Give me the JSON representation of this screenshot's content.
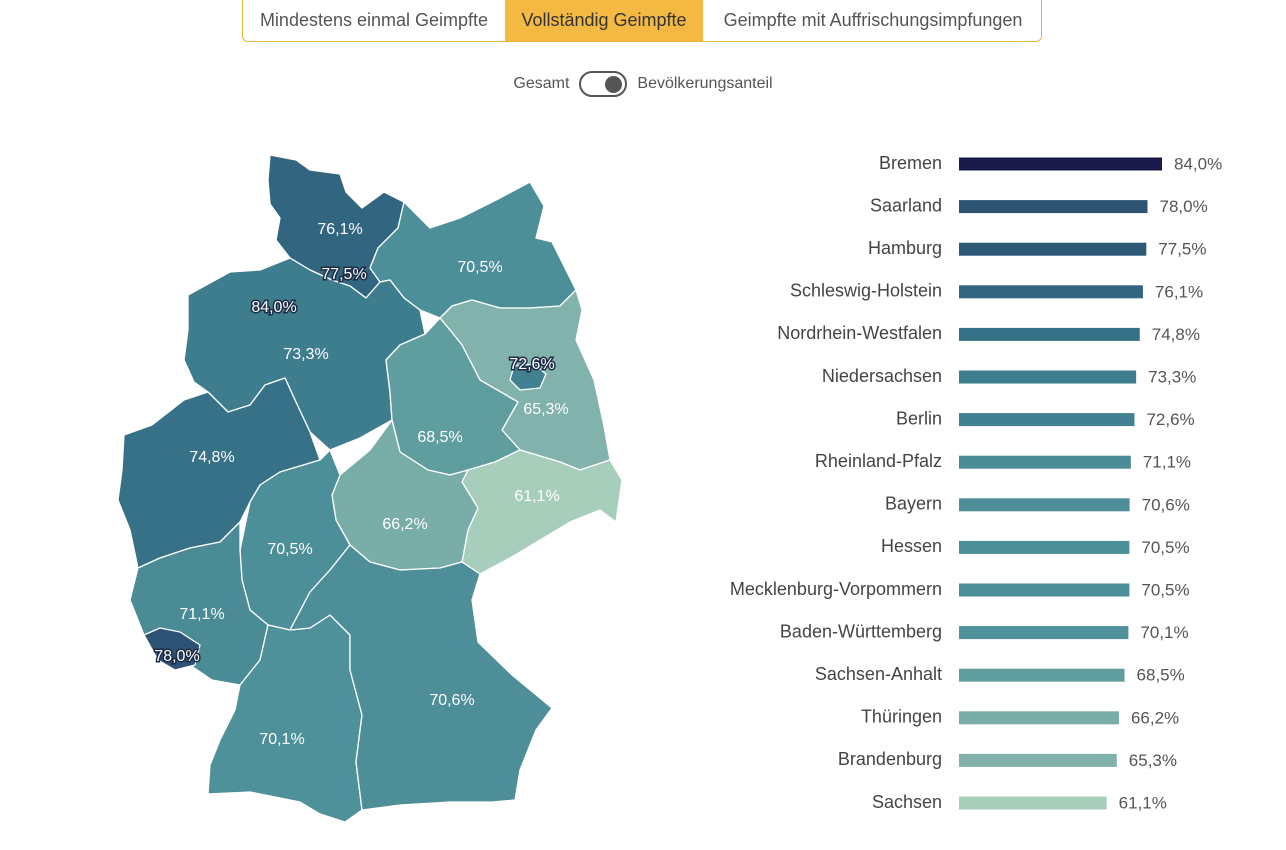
{
  "tabs": [
    {
      "label": "Mindestens einmal Geimpfte",
      "active": false
    },
    {
      "label": "Vollständig Geimpfte",
      "active": true
    },
    {
      "label": "Geimpfte mit Auffrischungsimpfungen",
      "active": false
    }
  ],
  "toggle": {
    "left_label": "Gesamt",
    "right_label": "Bevölkerungsanteil",
    "state": "Bevölkerungsanteil"
  },
  "colors": {
    "accent": "#f4b942",
    "tab_border": "#e8b53a",
    "scale_dark": "#1a1a4a",
    "scale_light": "#a8cebb"
  },
  "chart_data": [
    {
      "type": "map",
      "regions": [
        {
          "name": "Schleswig-Holstein",
          "label": "76,1%",
          "value": 76.1
        },
        {
          "name": "Hamburg",
          "label": "77,5%",
          "value": 77.5
        },
        {
          "name": "Bremen",
          "label": "84,0%",
          "value": 84.0
        },
        {
          "name": "Niedersachsen",
          "label": "73,3%",
          "value": 73.3
        },
        {
          "name": "Mecklenburg-Vorpommern",
          "label": "70,5%",
          "value": 70.5
        },
        {
          "name": "Berlin",
          "label": "72,6%",
          "value": 72.6
        },
        {
          "name": "Brandenburg",
          "label": "65,3%",
          "value": 65.3
        },
        {
          "name": "Sachsen-Anhalt",
          "label": "68,5%",
          "value": 68.5
        },
        {
          "name": "Nordrhein-Westfalen",
          "label": "74,8%",
          "value": 74.8
        },
        {
          "name": "Hessen",
          "label": "70,5%",
          "value": 70.5
        },
        {
          "name": "Thüringen",
          "label": "66,2%",
          "value": 66.2
        },
        {
          "name": "Sachsen",
          "label": "61,1%",
          "value": 61.1
        },
        {
          "name": "Rheinland-Pfalz",
          "label": "71,1%",
          "value": 71.1
        },
        {
          "name": "Saarland",
          "label": "78,0%",
          "value": 78.0
        },
        {
          "name": "Baden-Württemberg",
          "label": "70,1%",
          "value": 70.1
        },
        {
          "name": "Bayern",
          "label": "70,6%",
          "value": 70.6
        }
      ]
    },
    {
      "type": "bar",
      "orientation": "horizontal",
      "categories": [
        "Bremen",
        "Saarland",
        "Hamburg",
        "Schleswig-Holstein",
        "Nordrhein-Westfalen",
        "Niedersachsen",
        "Berlin",
        "Rheinland-Pfalz",
        "Bayern",
        "Hessen",
        "Mecklenburg-Vorpommern",
        "Baden-Württemberg",
        "Sachsen-Anhalt",
        "Thüringen",
        "Brandenburg",
        "Sachsen"
      ],
      "values": [
        84.0,
        78.0,
        77.5,
        76.1,
        74.8,
        73.3,
        72.6,
        71.1,
        70.6,
        70.5,
        70.5,
        70.1,
        68.5,
        66.2,
        65.3,
        61.1
      ],
      "labels": [
        "84,0%",
        "78,0%",
        "77,5%",
        "76,1%",
        "74,8%",
        "73,3%",
        "72,6%",
        "71,1%",
        "70,6%",
        "70,5%",
        "70,5%",
        "70,1%",
        "68,5%",
        "66,2%",
        "65,3%",
        "61,1%"
      ],
      "xlim": [
        0,
        84.0
      ]
    }
  ]
}
